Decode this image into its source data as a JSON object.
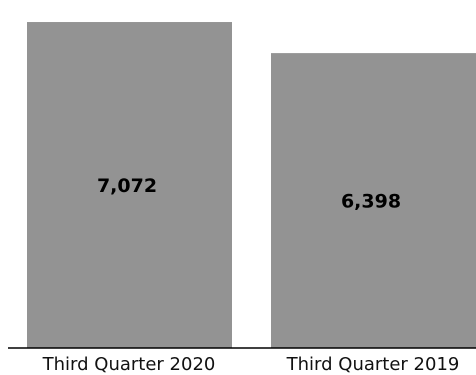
{
  "chart_data": {
    "type": "bar",
    "categories": [
      "Third Quarter 2020",
      "Third Quarter 2019"
    ],
    "values": [
      7072,
      6398
    ],
    "value_labels": [
      "7,072",
      "6,398"
    ],
    "title": "",
    "xlabel": "",
    "ylabel": "",
    "ylim": [
      0,
      7550
    ],
    "grid": false,
    "colors": {
      "bar": "#939393",
      "axis": "#000000"
    }
  }
}
